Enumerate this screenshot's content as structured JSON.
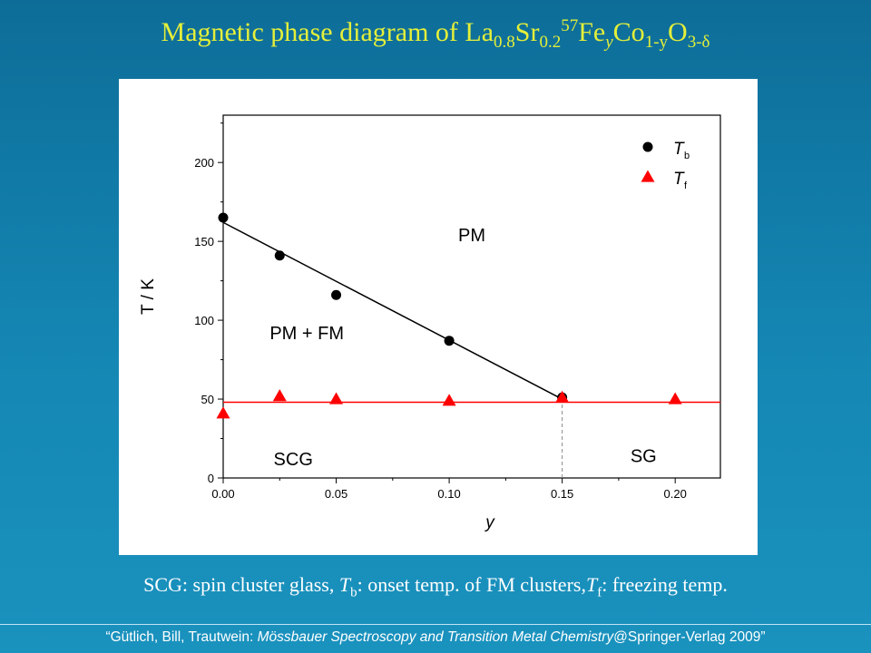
{
  "title": {
    "prefix": "Magnetic phase diagram of La",
    "la_sub": "0.8",
    "sr": "Sr",
    "sr_sub": "0.2",
    "sup57": "57",
    "fe": "Fe",
    "fe_sub": "y",
    "co": "Co",
    "co_sub": "1-y",
    "o": "O",
    "o_sub": "3-δ"
  },
  "caption": {
    "part1": "SCG: spin cluster glass, ",
    "tb_T": "T",
    "tb_sub": "b",
    "part2": ": onset temp. of FM clusters,",
    "tf_T": "T",
    "tf_sub": "f",
    "part3": ": freezing temp."
  },
  "footer": {
    "part1": "“Gütlich, Bill, Trautwein: ",
    "book": "Mössbauer Spectroscopy and Transition Metal Chemistry",
    "part2": "@Springer-Verlag 2009”"
  },
  "chart_data": {
    "type": "scatter",
    "xlabel": "y",
    "ylabel": "T / K",
    "xlim": [
      0.0,
      0.22
    ],
    "ylim": [
      0,
      230
    ],
    "xticks": [
      "0.00",
      "0.05",
      "0.10",
      "0.15",
      "0.20"
    ],
    "yticks": [
      "0",
      "50",
      "100",
      "150",
      "200"
    ],
    "series": [
      {
        "name": "T_b",
        "legend_main": "T",
        "legend_sub": "b",
        "marker": "circle",
        "color": "#000000",
        "x": [
          0.0,
          0.025,
          0.05,
          0.1,
          0.15
        ],
        "y": [
          165,
          141,
          116,
          87,
          51
        ]
      },
      {
        "name": "T_f",
        "legend_main": "T",
        "legend_sub": "f",
        "marker": "triangle",
        "color": "#ff0000",
        "x": [
          0.0,
          0.025,
          0.05,
          0.1,
          0.15,
          0.2
        ],
        "y": [
          41,
          52,
          50,
          49,
          51,
          50
        ]
      }
    ],
    "lines": [
      {
        "color": "#000000",
        "x": [
          0.0,
          0.15
        ],
        "y": [
          162,
          50
        ]
      },
      {
        "color": "#ff0000",
        "x": [
          0.0,
          0.22
        ],
        "y": [
          48,
          48
        ]
      },
      {
        "color": "#888888",
        "dashed": true,
        "x": [
          0.15,
          0.15
        ],
        "y": [
          0,
          50
        ]
      }
    ],
    "region_labels": [
      {
        "text": "PM",
        "x": 0.11,
        "y": 150
      },
      {
        "text": "PM + FM",
        "x": 0.037,
        "y": 88
      },
      {
        "text": "SCG",
        "x": 0.031,
        "y": 8
      },
      {
        "text": "SG",
        "x": 0.186,
        "y": 10
      }
    ],
    "legend_position": "top-right"
  }
}
